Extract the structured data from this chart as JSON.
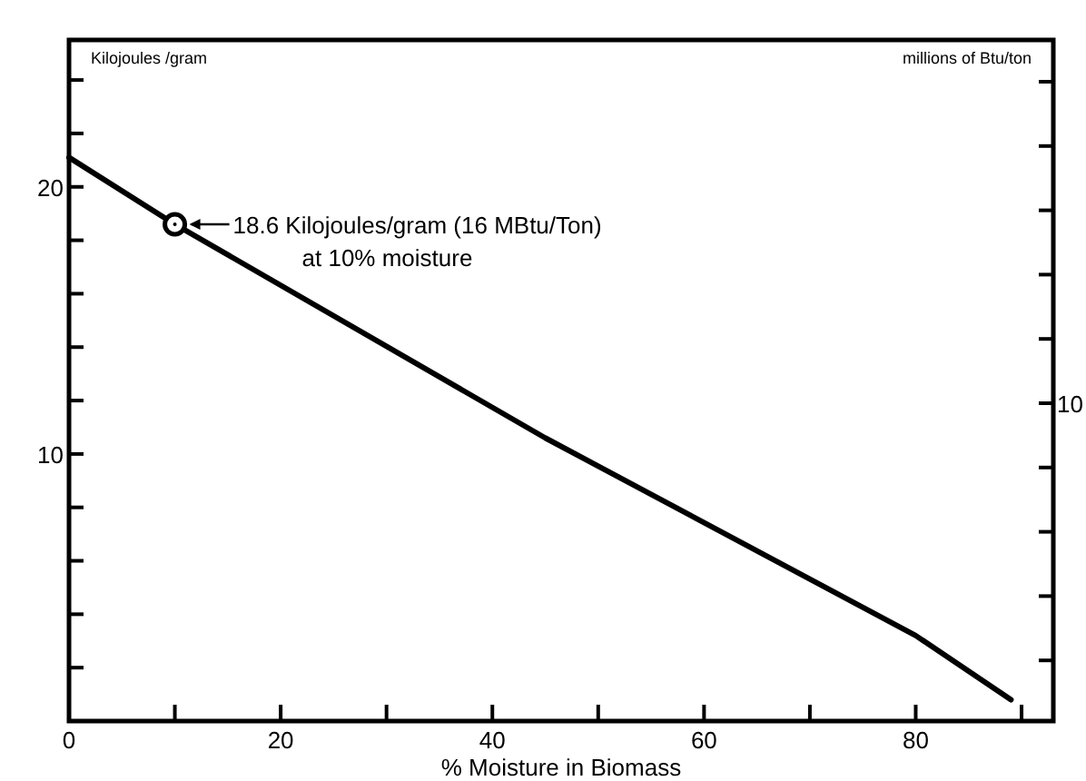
{
  "chart_data": {
    "type": "line",
    "xlabel": "% Moisture in Biomass",
    "ylabel": "Kilojoules /gram",
    "y2label": "millions of Btu/ton",
    "x": [
      0,
      10,
      45,
      80,
      89
    ],
    "series": [
      {
        "color": "#000000",
        "values": [
          21.1,
          18.6,
          10.6,
          3.2,
          0.8
        ]
      }
    ],
    "xlim": [
      0,
      93
    ],
    "xticks": [
      0,
      {
        "value": 10,
        "label": null
      },
      20,
      {
        "value": 30,
        "label": null
      },
      40,
      {
        "value": 50,
        "label": null
      },
      60,
      {
        "value": 70,
        "label": null
      },
      80,
      {
        "value": 90,
        "label": null
      }
    ],
    "ylim": [
      0,
      25.5
    ],
    "yticks": [
      {
        "value": 2,
        "label": null
      },
      {
        "value": 4,
        "label": null
      },
      {
        "value": 6,
        "label": null
      },
      {
        "value": 8,
        "label": null
      },
      10,
      {
        "value": 12,
        "label": null
      },
      {
        "value": 14,
        "label": null
      },
      {
        "value": 16,
        "label": null
      },
      {
        "value": 18,
        "label": null
      },
      20,
      {
        "value": 22,
        "label": null
      },
      {
        "value": 24,
        "label": null
      }
    ],
    "annotations": [
      {
        "text": "18.6 Kilojoules/gram (16 MBtu/Ton)\nat 10% moisture",
        "x": 10,
        "y": 18.6
      },
      "10"
    ],
    "grid": false,
    "marker": "none",
    "line_style": "solid"
  }
}
